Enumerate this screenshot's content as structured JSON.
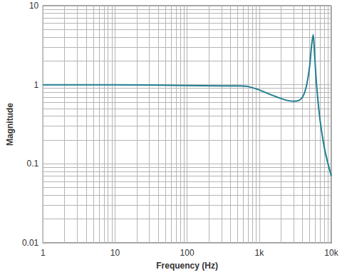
{
  "chart_data": {
    "type": "line",
    "x_label": "Frequency (Hz)",
    "y_label": "Magnitude",
    "log": true,
    "grid": true,
    "color": "#1f7f8f",
    "x": [
      1,
      10,
      100,
      300,
      500,
      700,
      1000,
      1500,
      2000,
      2500,
      3000,
      3500,
      4000,
      4500,
      5000,
      5300,
      5600,
      5900,
      6300,
      7000,
      8000,
      9000,
      10000
    ],
    "values": [
      1,
      1,
      0.98,
      0.97,
      0.97,
      0.95,
      0.86,
      0.74,
      0.67,
      0.63,
      0.62,
      0.63,
      0.7,
      0.95,
      1.7,
      3,
      4.3,
      2.2,
      0.9,
      0.35,
      0.16,
      0.1,
      0.07
    ],
    "xlim": [
      1,
      10000
    ],
    "ylim": [
      0.01,
      10
    ],
    "xticks": [
      1,
      10,
      100,
      {
        "value": 1000,
        "label": "1k"
      },
      {
        "value": 10000,
        "label": "10k"
      }
    ],
    "yticks": [
      0.01,
      0.1,
      1,
      10
    ]
  }
}
